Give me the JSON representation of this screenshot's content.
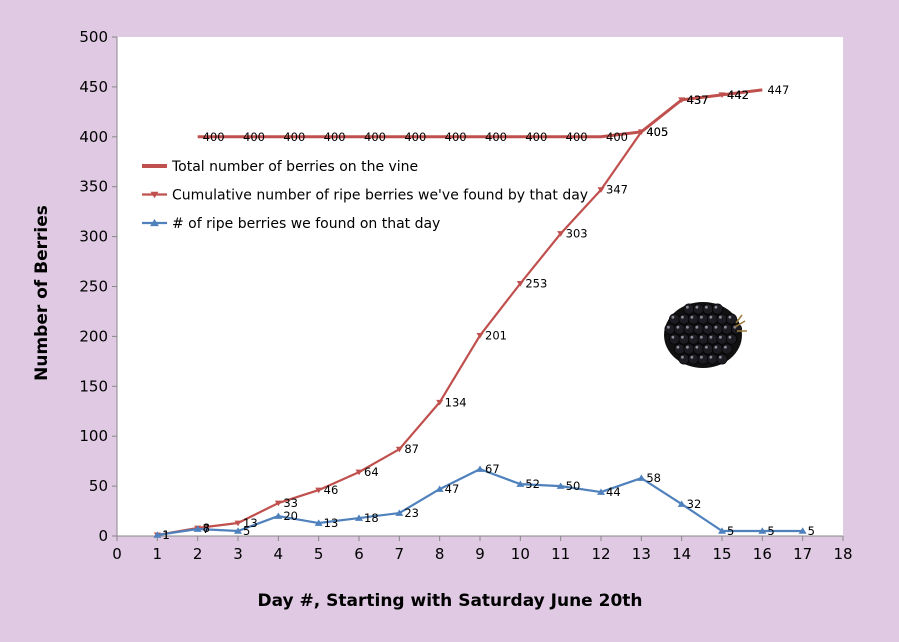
{
  "chart_data": {
    "type": "line",
    "xlabel": "Day #, Starting with Saturday June 20th",
    "ylabel": "Number of Berries",
    "xlim": [
      0,
      18
    ],
    "ylim": [
      0,
      500
    ],
    "xticks": [
      0,
      1,
      2,
      3,
      4,
      5,
      6,
      7,
      8,
      9,
      10,
      11,
      12,
      13,
      14,
      15,
      16,
      17,
      18
    ],
    "yticks": [
      0,
      50,
      100,
      150,
      200,
      250,
      300,
      350,
      400,
      450,
      500
    ],
    "grid": false,
    "legend_position": "top-left",
    "series": [
      {
        "name": "Total number of berries on the vine",
        "color": "#c0504d",
        "marker": "none",
        "x": [
          2,
          3,
          4,
          5,
          6,
          7,
          8,
          9,
          10,
          11,
          12,
          13,
          14,
          15,
          16
        ],
        "y": [
          400,
          400,
          400,
          400,
          400,
          400,
          400,
          400,
          400,
          400,
          400,
          405,
          437,
          442,
          447
        ],
        "labels": [
          "400",
          "400",
          "400",
          "400",
          "400",
          "400",
          "400",
          "400",
          "400",
          "400",
          "400",
          "405",
          "437",
          "442",
          "447"
        ]
      },
      {
        "name": "Cumulative number of ripe berries we've found by that day",
        "color": "#c0504d",
        "marker": "triangle-down",
        "x": [
          1,
          2,
          3,
          4,
          5,
          6,
          7,
          8,
          9,
          10,
          11,
          12,
          13,
          14,
          15
        ],
        "y": [
          1,
          8,
          13,
          33,
          46,
          64,
          87,
          134,
          201,
          253,
          303,
          347,
          405,
          437,
          442
        ],
        "labels": [
          "1",
          "8",
          "13",
          "33",
          "46",
          "64",
          "87",
          "134",
          "201",
          "253",
          "303",
          "347",
          "405",
          "437",
          "442"
        ]
      },
      {
        "name": "# of ripe berries we found on that day",
        "color": "#4f81bd",
        "marker": "triangle-up",
        "x": [
          1,
          2,
          3,
          4,
          5,
          6,
          7,
          8,
          9,
          10,
          11,
          12,
          13,
          14,
          15,
          16,
          17
        ],
        "y": [
          1,
          7,
          5,
          20,
          13,
          18,
          23,
          47,
          67,
          52,
          50,
          44,
          58,
          32,
          5,
          5,
          5
        ],
        "labels": [
          "1",
          "7",
          "5",
          "20",
          "13",
          "18",
          "23",
          "47",
          "67",
          "52",
          "50",
          "44",
          "58",
          "32",
          "5",
          "5",
          "5"
        ]
      }
    ]
  },
  "decoration": {
    "image": "blackberry-image"
  }
}
